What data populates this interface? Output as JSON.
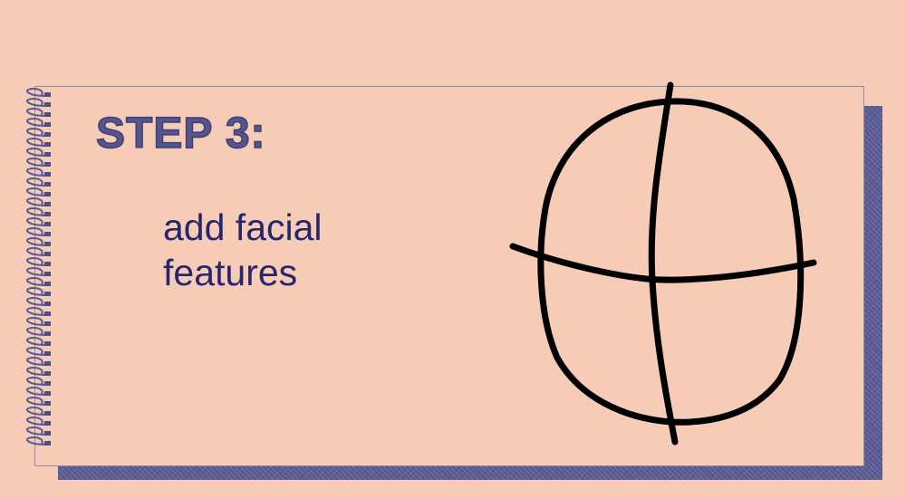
{
  "step": {
    "title": "STEP 3:",
    "instruction": "add facial features"
  },
  "colors": {
    "background": "#f6ccb6",
    "accent": "#55558c",
    "text": "#26266e",
    "drawing": "#000000"
  },
  "icons": {
    "binding": "spiral-binding-icon",
    "drawing": "face-guidelines-sketch"
  }
}
